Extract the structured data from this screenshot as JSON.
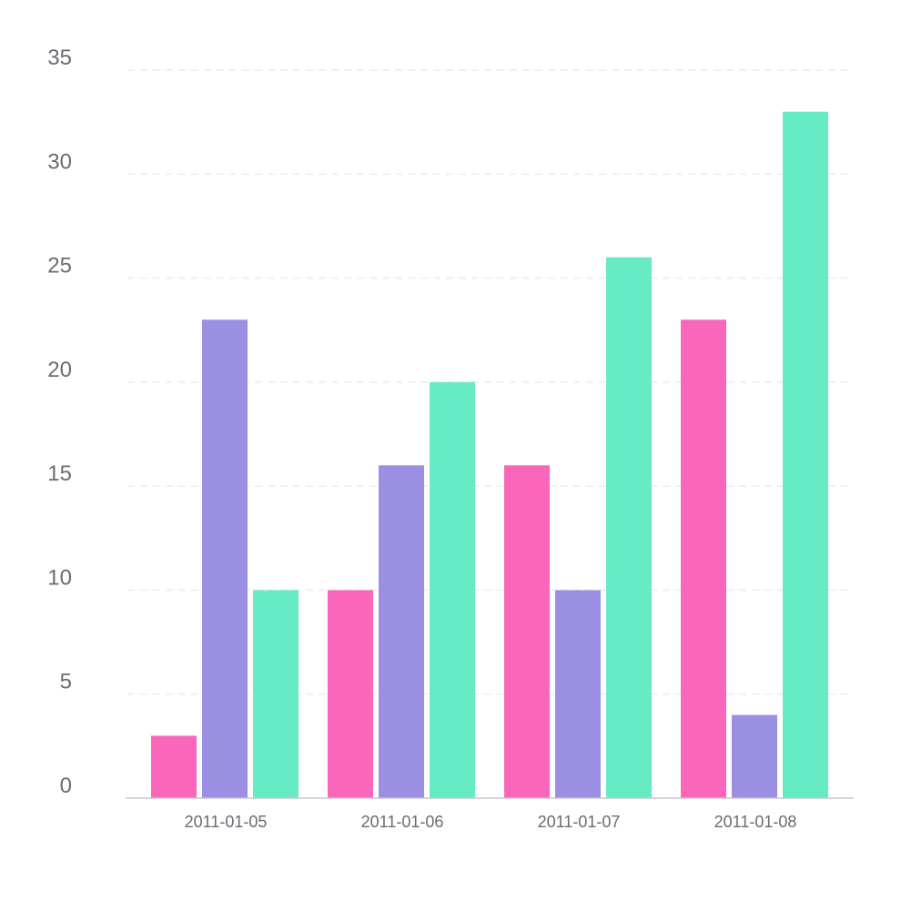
{
  "chart_data": {
    "type": "bar",
    "categories": [
      "2011-01-05",
      "2011-01-06",
      "2011-01-07",
      "2011-01-08"
    ],
    "series": [
      {
        "color": "#fa66b9",
        "values": [
          3,
          10,
          16,
          23
        ]
      },
      {
        "color": "#9a8fe2",
        "values": [
          23,
          16,
          10,
          4
        ]
      },
      {
        "color": "#67ebc5",
        "values": [
          10,
          20,
          26,
          33
        ]
      }
    ],
    "ylim": [
      0,
      35
    ],
    "yticks": [
      "0",
      "5",
      "10",
      "15",
      "20",
      "25",
      "30",
      "35"
    ],
    "grid": true,
    "title": "",
    "xlabel": "",
    "ylabel": ""
  }
}
